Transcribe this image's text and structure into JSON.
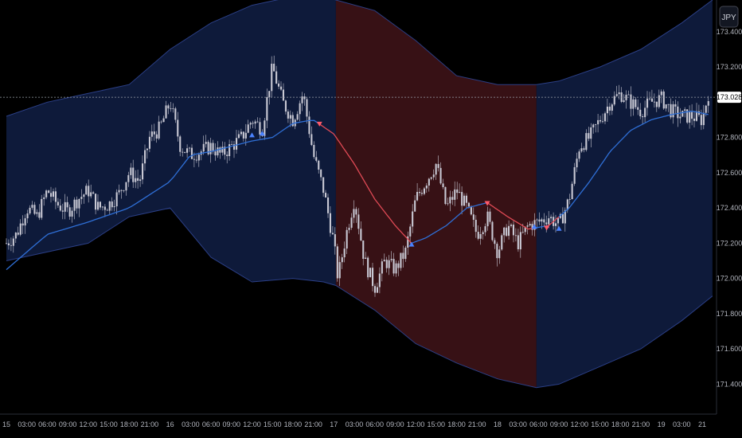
{
  "currency_button": {
    "label": "JPY"
  },
  "chart_data": {
    "type": "line",
    "y_axis": {
      "min": 171.23,
      "max": 173.58,
      "ticks": [
        {
          "value": 171.4,
          "label": "171.400"
        },
        {
          "value": 171.6,
          "label": "171.600"
        },
        {
          "value": 171.8,
          "label": "171.800"
        },
        {
          "value": 172.0,
          "label": "172.000"
        },
        {
          "value": 172.2,
          "label": "172.200"
        },
        {
          "value": 172.4,
          "label": "172.400"
        },
        {
          "value": 172.6,
          "label": "172.600"
        },
        {
          "value": 172.8,
          "label": "172.800"
        },
        {
          "value": 173.2,
          "label": "173.200"
        },
        {
          "value": 173.4,
          "label": "173.400"
        }
      ]
    },
    "current_price": {
      "value": 173.028,
      "label": "173.028"
    },
    "x_labels": [
      "15",
      "03:00",
      "06:00",
      "09:00",
      "12:00",
      "15:00",
      "18:00",
      "21:00",
      "16",
      "03:00",
      "06:00",
      "09:00",
      "12:00",
      "15:00",
      "18:00",
      "21:00",
      "17",
      "03:00",
      "06:00",
      "09:00",
      "12:00",
      "15:00",
      "18:00",
      "21:00",
      "18",
      "03:00",
      "06:00",
      "09:00",
      "12:00",
      "15:00",
      "18:00",
      "21:00",
      "19",
      "03:00",
      "21"
    ],
    "regimes": [
      {
        "label": "bullish",
        "color": "#0f1b3d",
        "start": 0,
        "end": 16.1
      },
      {
        "label": "bearish",
        "color": "#3a1216",
        "start": 16.1,
        "end": 25.9
      },
      {
        "label": "bullish",
        "color": "#0f1b3d",
        "start": 25.9,
        "end": 34.5
      }
    ],
    "price_path": [
      [
        0,
        172.2
      ],
      [
        0.5,
        172.25
      ],
      [
        1,
        172.4
      ],
      [
        1.5,
        172.35
      ],
      [
        2,
        172.5
      ],
      [
        2.5,
        172.42
      ],
      [
        3,
        172.38
      ],
      [
        3.5,
        172.45
      ],
      [
        4,
        172.5
      ],
      [
        4.5,
        172.4
      ],
      [
        5,
        172.42
      ],
      [
        5.5,
        172.48
      ],
      [
        6,
        172.6
      ],
      [
        6.5,
        172.55
      ],
      [
        7,
        172.8
      ],
      [
        7.5,
        172.85
      ],
      [
        8,
        173.0
      ],
      [
        8.5,
        172.75
      ],
      [
        9,
        172.7
      ],
      [
        9.5,
        172.72
      ],
      [
        10,
        172.75
      ],
      [
        10.5,
        172.7
      ],
      [
        11,
        172.75
      ],
      [
        11.5,
        172.8
      ],
      [
        12,
        172.9
      ],
      [
        12.5,
        172.85
      ],
      [
        13,
        173.2
      ],
      [
        13.5,
        173.0
      ],
      [
        14,
        172.9
      ],
      [
        14.5,
        173.05
      ],
      [
        15,
        172.7
      ],
      [
        15.5,
        172.5
      ],
      [
        16,
        172.2
      ],
      [
        16.2,
        172.0
      ],
      [
        16.6,
        172.25
      ],
      [
        17,
        172.45
      ],
      [
        17.5,
        172.1
      ],
      [
        18,
        171.95
      ],
      [
        18.5,
        172.1
      ],
      [
        19,
        172.05
      ],
      [
        19.5,
        172.15
      ],
      [
        20,
        172.45
      ],
      [
        20.5,
        172.55
      ],
      [
        21,
        172.65
      ],
      [
        21.5,
        172.4
      ],
      [
        22,
        172.5
      ],
      [
        22.5,
        172.4
      ],
      [
        23,
        172.25
      ],
      [
        23.5,
        172.35
      ],
      [
        24,
        172.15
      ],
      [
        24.5,
        172.3
      ],
      [
        25,
        172.2
      ],
      [
        25.5,
        172.3
      ],
      [
        26,
        172.32
      ],
      [
        26.5,
        172.35
      ],
      [
        27,
        172.3
      ],
      [
        27.5,
        172.45
      ],
      [
        28,
        172.75
      ],
      [
        28.5,
        172.8
      ],
      [
        29,
        172.9
      ],
      [
        29.5,
        173.0
      ],
      [
        30,
        173.05
      ],
      [
        30.5,
        173.0
      ],
      [
        31,
        172.95
      ],
      [
        31.5,
        173.0
      ],
      [
        32,
        173.02
      ],
      [
        32.5,
        172.95
      ],
      [
        33,
        172.92
      ],
      [
        33.5,
        172.92
      ],
      [
        34,
        172.9
      ],
      [
        34.3,
        173.05
      ]
    ],
    "ma_path": [
      [
        0,
        172.05
      ],
      [
        2,
        172.25
      ],
      [
        4,
        172.32
      ],
      [
        6,
        172.4
      ],
      [
        8,
        172.55
      ],
      [
        9,
        172.7
      ],
      [
        10,
        172.72
      ],
      [
        12,
        172.78
      ],
      [
        13,
        172.8
      ],
      [
        14,
        172.88
      ],
      [
        15,
        172.9
      ],
      [
        16,
        172.82
      ],
      [
        17,
        172.65
      ],
      [
        18,
        172.45
      ],
      [
        19,
        172.3
      ],
      [
        19.8,
        172.2
      ],
      [
        20.5,
        172.23
      ],
      [
        21.5,
        172.3
      ],
      [
        22.5,
        172.4
      ],
      [
        23.5,
        172.43
      ],
      [
        24.5,
        172.35
      ],
      [
        25.5,
        172.28
      ],
      [
        26.5,
        172.3
      ],
      [
        27.5,
        172.4
      ],
      [
        28.5,
        172.55
      ],
      [
        29.5,
        172.72
      ],
      [
        30.5,
        172.84
      ],
      [
        31.5,
        172.9
      ],
      [
        32.5,
        172.93
      ],
      [
        33.5,
        172.95
      ],
      [
        34.3,
        172.93
      ]
    ],
    "upper_band": [
      [
        0,
        172.92
      ],
      [
        2,
        173.0
      ],
      [
        4,
        173.05
      ],
      [
        6,
        173.1
      ],
      [
        8,
        173.3
      ],
      [
        10,
        173.45
      ],
      [
        12,
        173.55
      ],
      [
        14,
        173.6
      ],
      [
        15.5,
        173.6
      ],
      [
        16.1,
        173.58
      ],
      [
        18,
        173.52
      ],
      [
        20,
        173.35
      ],
      [
        22,
        173.15
      ],
      [
        24,
        173.1
      ],
      [
        25.9,
        173.1
      ],
      [
        27,
        173.12
      ],
      [
        29,
        173.2
      ],
      [
        31,
        173.3
      ],
      [
        33,
        173.45
      ],
      [
        34.5,
        173.58
      ]
    ],
    "lower_band": [
      [
        0,
        172.1
      ],
      [
        2,
        172.15
      ],
      [
        4,
        172.2
      ],
      [
        6,
        172.35
      ],
      [
        8,
        172.4
      ],
      [
        10,
        172.12
      ],
      [
        12,
        171.98
      ],
      [
        14,
        172.0
      ],
      [
        15.5,
        171.98
      ],
      [
        16.1,
        171.96
      ],
      [
        18,
        171.82
      ],
      [
        20,
        171.63
      ],
      [
        22,
        171.52
      ],
      [
        24,
        171.43
      ],
      [
        25.9,
        171.38
      ],
      [
        27,
        171.4
      ],
      [
        29,
        171.5
      ],
      [
        31,
        171.6
      ],
      [
        33,
        171.76
      ],
      [
        34.5,
        171.9
      ]
    ],
    "signals": [
      {
        "x": 12.0,
        "y": 172.81,
        "dir": "up"
      },
      {
        "x": 12.5,
        "y": 172.82,
        "dir": "up"
      },
      {
        "x": 15.3,
        "y": 172.88,
        "dir": "down"
      },
      {
        "x": 19.8,
        "y": 172.19,
        "dir": "up"
      },
      {
        "x": 23.5,
        "y": 172.43,
        "dir": "down"
      },
      {
        "x": 25.8,
        "y": 172.29,
        "dir": "up"
      },
      {
        "x": 26.4,
        "y": 172.29,
        "dir": "down"
      },
      {
        "x": 27.0,
        "y": 172.28,
        "dir": "up"
      }
    ],
    "colors": {
      "candle": "#c9c9d4",
      "ma_bull": "#2f6fd6",
      "ma_bear": "#e04a55",
      "band_edge": "#2b3f86",
      "signal_up": "#4a82ff",
      "signal_down": "#ff5a6a",
      "price_line": "#9aa0aa",
      "axis_text": "#b2b5be"
    }
  }
}
